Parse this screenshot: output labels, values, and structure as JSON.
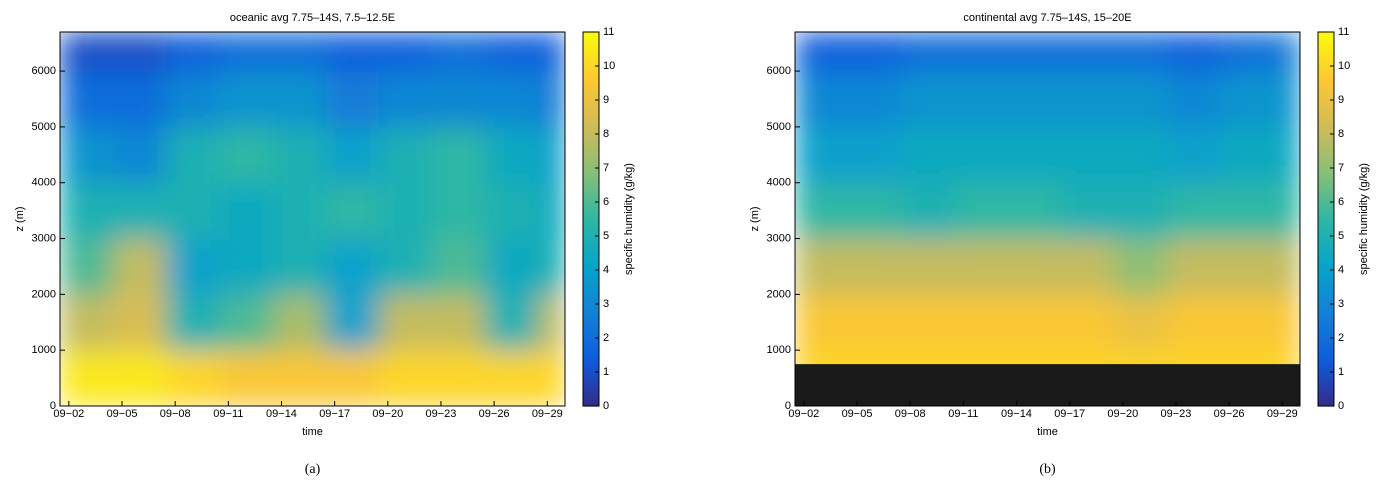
{
  "chart_data": [
    {
      "type": "heatmap",
      "title": "oceanic avg 7.75–14S, 7.5–12.5E",
      "xlabel": "time",
      "ylabel": "z (m)",
      "colorbar_label": "specific humidity (g/kg)",
      "caption": "(a)",
      "xlim": [
        1.5,
        30
      ],
      "ylim": [
        0,
        6700
      ],
      "xticks": [
        {
          "value": 2,
          "label": "09−02"
        },
        {
          "value": 5,
          "label": "09−05"
        },
        {
          "value": 8,
          "label": "09−08"
        },
        {
          "value": 11,
          "label": "09−11"
        },
        {
          "value": 14,
          "label": "09−14"
        },
        {
          "value": 17,
          "label": "09−17"
        },
        {
          "value": 20,
          "label": "09−20"
        },
        {
          "value": 23,
          "label": "09−23"
        },
        {
          "value": 26,
          "label": "09−26"
        },
        {
          "value": 29,
          "label": "09−29"
        }
      ],
      "yticks": [
        0,
        1000,
        2000,
        3000,
        4000,
        5000,
        6000
      ],
      "clim": [
        0,
        11
      ],
      "cticks": [
        0,
        1,
        2,
        3,
        4,
        5,
        6,
        7,
        8,
        9,
        10,
        11
      ],
      "colormap": [
        "#352a87",
        "#0f5cdd",
        "#1481d6",
        "#06a4ca",
        "#2eb7a4",
        "#87bf77",
        "#d1bb59",
        "#fec832",
        "#f9fb0e"
      ],
      "x_edges": [
        1.5,
        4.5,
        7.5,
        10.5,
        13.5,
        16.5,
        19.5,
        22.5,
        25.5,
        28.5,
        30
      ],
      "y_edges": [
        0,
        1000,
        2000,
        3000,
        4000,
        5000,
        6000,
        6700
      ],
      "values": [
        [
          10.5,
          10.5,
          10,
          9.5,
          9.5,
          9.5,
          10,
          10,
          10,
          10
        ],
        [
          8,
          8.5,
          5,
          6,
          7.5,
          4,
          8,
          8,
          5,
          8
        ],
        [
          6,
          8,
          4,
          4.5,
          5,
          4,
          5,
          6,
          4.5,
          5
        ],
        [
          5,
          5,
          5,
          4.5,
          5,
          5.5,
          5,
          5.5,
          5,
          4.5
        ],
        [
          3.5,
          3,
          5,
          5.5,
          5,
          4,
          5,
          5.5,
          4.5,
          4
        ],
        [
          2,
          2,
          3,
          3.5,
          3.5,
          2.5,
          3,
          3,
          3,
          2.5
        ],
        [
          1,
          1,
          1.5,
          2,
          2,
          1.5,
          1.5,
          2,
          1.5,
          1.5
        ]
      ]
    },
    {
      "type": "heatmap",
      "title": "continental avg 7.75–14S, 15–20E",
      "xlabel": "time",
      "ylabel": "z (m)",
      "colorbar_label": "specific humidity (g/kg)",
      "caption": "(b)",
      "xlim": [
        1.5,
        30
      ],
      "ylim": [
        0,
        6700
      ],
      "xticks": [
        {
          "value": 2,
          "label": "09−02"
        },
        {
          "value": 5,
          "label": "09−05"
        },
        {
          "value": 8,
          "label": "09−08"
        },
        {
          "value": 11,
          "label": "09−11"
        },
        {
          "value": 14,
          "label": "09−14"
        },
        {
          "value": 17,
          "label": "09−17"
        },
        {
          "value": 20,
          "label": "09−20"
        },
        {
          "value": 23,
          "label": "09−23"
        },
        {
          "value": 26,
          "label": "09−26"
        },
        {
          "value": 29,
          "label": "09−29"
        }
      ],
      "yticks": [
        0,
        1000,
        2000,
        3000,
        4000,
        5000,
        6000
      ],
      "clim": [
        0,
        11
      ],
      "cticks": [
        0,
        1,
        2,
        3,
        4,
        5,
        6,
        7,
        8,
        9,
        10,
        11
      ],
      "colormap": [
        "#352a87",
        "#0f5cdd",
        "#1481d6",
        "#06a4ca",
        "#2eb7a4",
        "#87bf77",
        "#d1bb59",
        "#fec832",
        "#f9fb0e"
      ],
      "terrain_height": 750,
      "terrain_color": "#1a1a1a",
      "x_edges": [
        1.5,
        4.5,
        7.5,
        10.5,
        13.5,
        16.5,
        19.5,
        22.5,
        25.5,
        28.5,
        30
      ],
      "y_edges": [
        0,
        1000,
        2000,
        3000,
        4000,
        5000,
        6000,
        6700
      ],
      "values": [
        [
          10,
          10,
          10,
          10,
          10,
          10,
          10,
          10,
          10,
          10
        ],
        [
          9.5,
          9.5,
          9.5,
          9.5,
          9.5,
          9.5,
          9,
          9.5,
          9.5,
          9.5
        ],
        [
          8,
          8,
          8,
          8,
          8,
          8,
          7,
          8,
          8,
          8
        ],
        [
          5.5,
          5.5,
          5,
          5.5,
          5.5,
          5,
          5,
          5.5,
          5.5,
          5.5
        ],
        [
          4,
          4,
          4.5,
          4.5,
          4.5,
          4.5,
          4.5,
          4,
          4.5,
          4.5
        ],
        [
          3,
          3,
          3.5,
          3.5,
          3.5,
          3.5,
          3.5,
          3,
          3.5,
          3.5
        ],
        [
          1.5,
          1.5,
          2,
          2,
          2,
          2,
          2,
          1.5,
          2,
          2.5
        ]
      ]
    }
  ]
}
